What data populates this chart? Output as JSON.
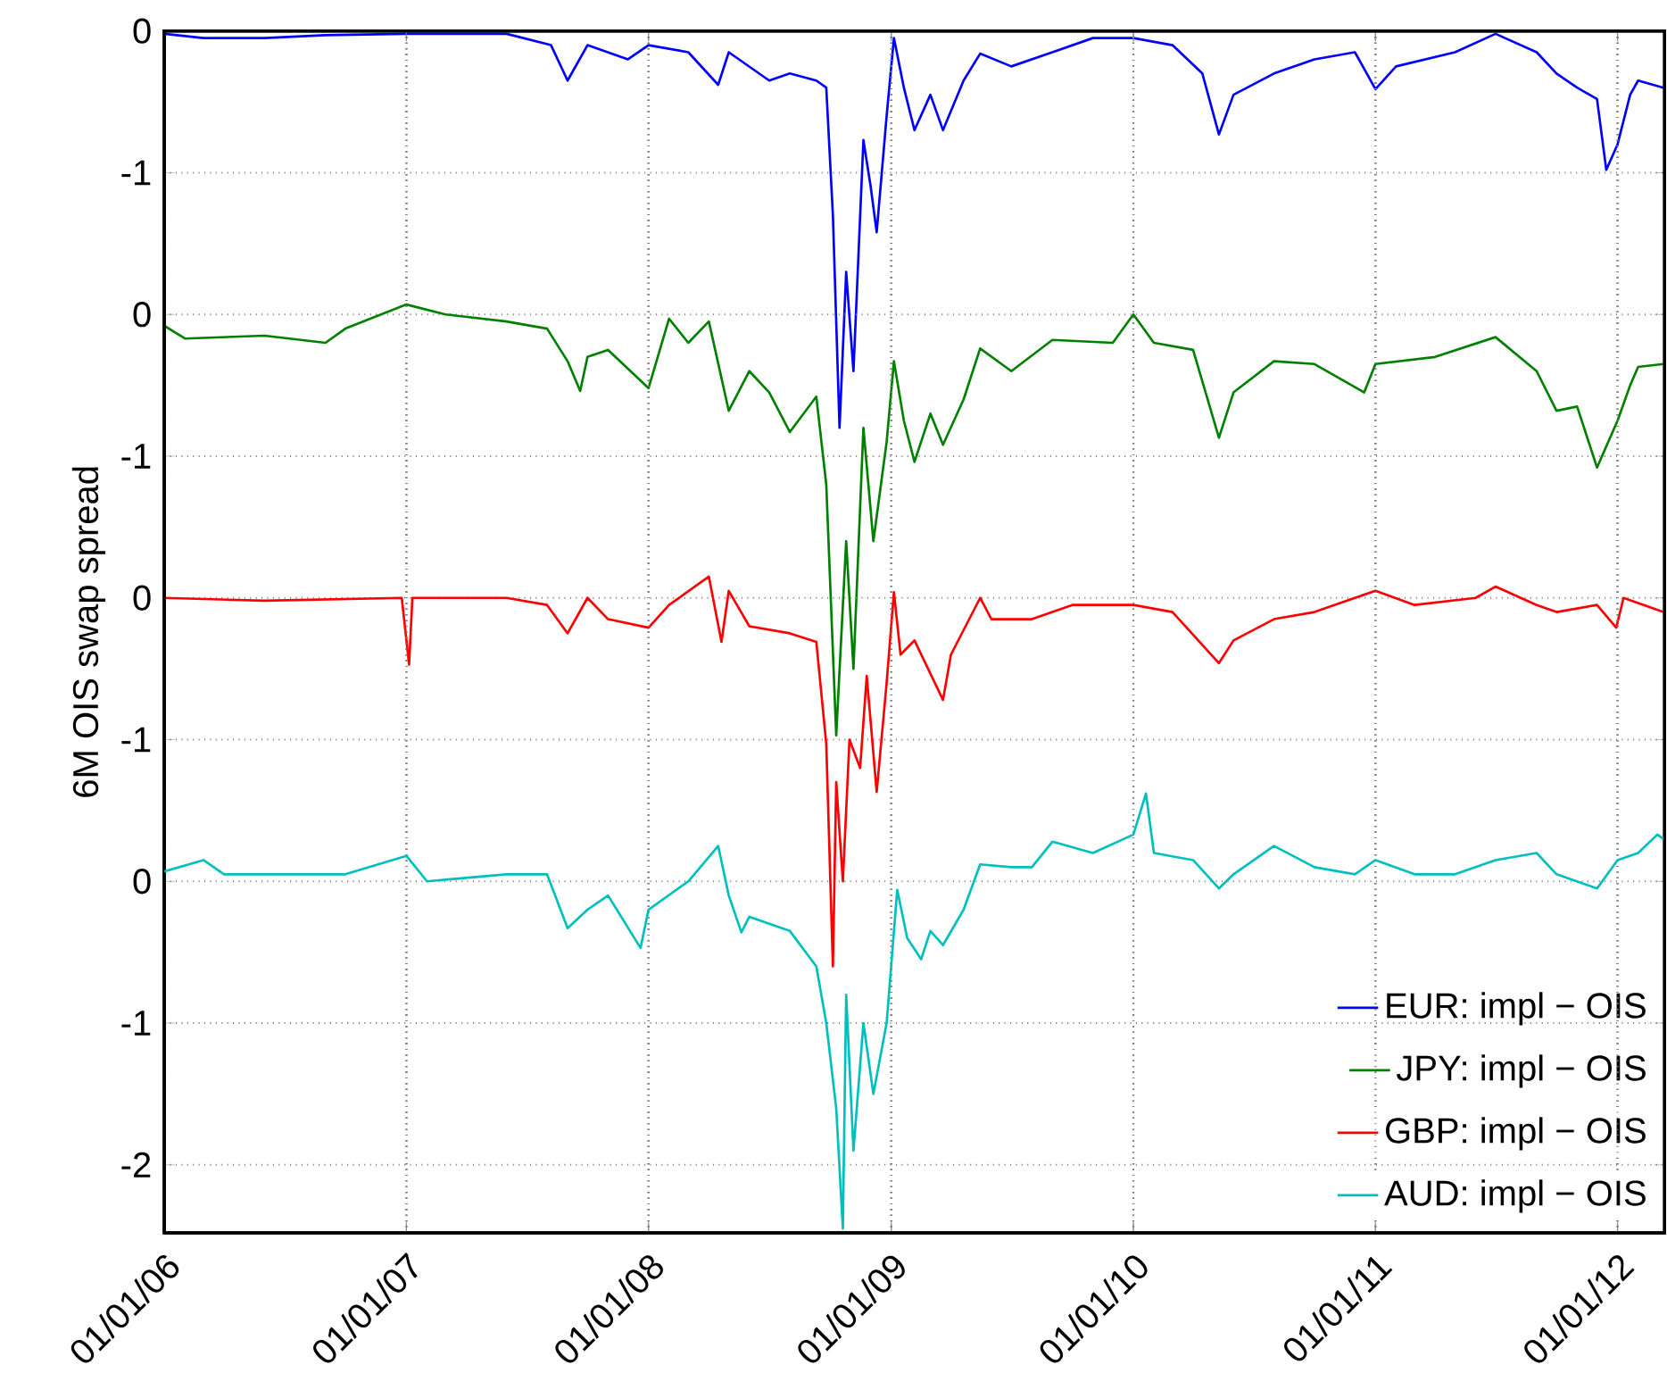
{
  "chart_data": [
    {
      "type": "line",
      "tick_labels": "y",
      "xlim": [
        "2006-01-01",
        "2012-03-12"
      ],
      "xticks": [
        {
          "value": "2006-01-01",
          "label": null
        },
        {
          "value": "2007-01-01",
          "label": null
        },
        {
          "value": "2008-01-01",
          "label": null
        },
        {
          "value": "2009-01-01",
          "label": null
        },
        {
          "value": "2010-01-01",
          "label": null
        },
        {
          "value": "2011-01-01",
          "label": null
        },
        {
          "value": "2012-01-01",
          "label": null
        }
      ],
      "ylim": [
        -8.48,
        0
      ],
      "yticks": [
        -1,
        0
      ],
      "grid": true,
      "legend": "bottom right",
      "marker": "none",
      "line_style": "solid",
      "series": [
        {
          "name": "EUR: impl − OIS",
          "color": "#0000ff",
          "x": [
            "2006-01-01",
            "2006-03-01",
            "2006-06-01",
            "2006-09-01",
            "2007-01-01",
            "2007-03-01",
            "2007-06-01",
            "2007-08-07",
            "2007-09-01",
            "2007-10-01",
            "2007-12-01",
            "2008-01-01",
            "2008-03-01",
            "2008-04-15",
            "2008-05-01",
            "2008-07-01",
            "2008-08-01",
            "2008-09-10",
            "2008-09-25",
            "2008-10-05",
            "2008-10-15",
            "2008-10-25",
            "2008-11-05",
            "2008-11-20",
            "2008-12-01",
            "2008-12-10",
            "2008-12-25",
            "2009-01-05",
            "2009-01-20",
            "2009-02-05",
            "2009-03-01",
            "2009-03-20",
            "2009-04-20",
            "2009-05-15",
            "2009-07-01",
            "2009-09-01",
            "2009-11-01",
            "2010-01-01",
            "2010-03-01",
            "2010-04-15",
            "2010-05-10",
            "2010-06-01",
            "2010-08-01",
            "2010-10-01",
            "2010-12-01",
            "2011-01-01",
            "2011-02-01",
            "2011-05-01",
            "2011-07-01",
            "2011-09-01",
            "2011-10-01",
            "2011-11-01",
            "2011-12-01",
            "2011-12-15",
            "2012-01-01",
            "2012-01-20",
            "2012-02-01",
            "2012-03-10"
          ],
          "values": [
            -0.02,
            -0.05,
            -0.05,
            -0.03,
            -0.02,
            -0.02,
            -0.02,
            -0.1,
            -0.35,
            -0.1,
            -0.2,
            -0.1,
            -0.15,
            -0.38,
            -0.15,
            -0.35,
            -0.3,
            -0.35,
            -0.4,
            -1.3,
            -2.8,
            -1.7,
            -2.4,
            -0.77,
            -1.1,
            -1.42,
            -0.6,
            -0.05,
            -0.4,
            -0.7,
            -0.45,
            -0.7,
            -0.35,
            -0.16,
            -0.25,
            -0.15,
            -0.05,
            -0.05,
            -0.1,
            -0.3,
            -0.73,
            -0.45,
            -0.3,
            -0.2,
            -0.15,
            -0.41,
            -0.25,
            -0.15,
            -0.02,
            -0.15,
            -0.3,
            -0.4,
            -0.48,
            -0.98,
            -0.8,
            -0.45,
            -0.35,
            -0.4
          ]
        }
      ]
    },
    {
      "type": "line",
      "tick_labels": "y",
      "xlim": [
        "2006-01-01",
        "2012-03-12"
      ],
      "xticks": [
        {
          "value": "2006-01-01",
          "label": null
        },
        {
          "value": "2007-01-01",
          "label": null
        },
        {
          "value": "2008-01-01",
          "label": null
        },
        {
          "value": "2009-01-01",
          "label": null
        },
        {
          "value": "2010-01-01",
          "label": null
        },
        {
          "value": "2011-01-01",
          "label": null
        },
        {
          "value": "2012-01-01",
          "label": null
        }
      ],
      "ylim": [
        -6.48,
        2
      ],
      "yticks": [
        -1,
        0
      ],
      "grid": true,
      "legend": "bottom right",
      "marker": "none",
      "line_style": "solid",
      "series": [
        {
          "name": "JPY: impl − OIS",
          "color": "#008000",
          "x": [
            "2006-01-01",
            "2006-02-01",
            "2006-06-01",
            "2006-09-01",
            "2006-10-01",
            "2007-01-01",
            "2007-03-01",
            "2007-06-01",
            "2007-08-01",
            "2007-09-01",
            "2007-09-20",
            "2007-10-01",
            "2007-11-01",
            "2008-01-01",
            "2008-02-01",
            "2008-03-01",
            "2008-04-01",
            "2008-05-01",
            "2008-06-01",
            "2008-07-01",
            "2008-08-01",
            "2008-09-10",
            "2008-09-25",
            "2008-10-10",
            "2008-10-25",
            "2008-11-05",
            "2008-11-20",
            "2008-12-05",
            "2008-12-25",
            "2009-01-05",
            "2009-01-20",
            "2009-02-05",
            "2009-03-01",
            "2009-03-20",
            "2009-04-20",
            "2009-05-15",
            "2009-07-01",
            "2009-09-01",
            "2009-12-01",
            "2010-01-01",
            "2010-02-01",
            "2010-04-01",
            "2010-05-10",
            "2010-06-01",
            "2010-08-01",
            "2010-10-01",
            "2010-12-15",
            "2011-01-01",
            "2011-04-01",
            "2011-07-01",
            "2011-09-01",
            "2011-10-01",
            "2011-11-01",
            "2011-12-01",
            "2012-01-01",
            "2012-01-20",
            "2012-02-01",
            "2012-03-10"
          ],
          "values": [
            -0.08,
            -0.17,
            -0.15,
            -0.2,
            -0.1,
            0.07,
            0.0,
            -0.05,
            -0.1,
            -0.33,
            -0.54,
            -0.3,
            -0.25,
            -0.52,
            -0.03,
            -0.2,
            -0.05,
            -0.68,
            -0.4,
            -0.55,
            -0.83,
            -0.58,
            -1.2,
            -2.97,
            -1.6,
            -2.5,
            -0.8,
            -1.6,
            -0.9,
            -0.33,
            -0.75,
            -1.04,
            -0.7,
            -0.92,
            -0.6,
            -0.24,
            -0.4,
            -0.18,
            -0.2,
            0.0,
            -0.2,
            -0.25,
            -0.87,
            -0.55,
            -0.33,
            -0.35,
            -0.55,
            -0.35,
            -0.3,
            -0.16,
            -0.4,
            -0.68,
            -0.65,
            -1.08,
            -0.75,
            -0.5,
            -0.37,
            -0.35
          ]
        }
      ]
    },
    {
      "type": "line",
      "tick_labels": "y",
      "xlim": [
        "2006-01-01",
        "2012-03-12"
      ],
      "xticks": [
        {
          "value": "2006-01-01",
          "label": null
        },
        {
          "value": "2007-01-01",
          "label": null
        },
        {
          "value": "2008-01-01",
          "label": null
        },
        {
          "value": "2009-01-01",
          "label": null
        },
        {
          "value": "2010-01-01",
          "label": null
        },
        {
          "value": "2011-01-01",
          "label": null
        },
        {
          "value": "2012-01-01",
          "label": null
        }
      ],
      "ylim": [
        -4.48,
        4
      ],
      "yticks": [
        -1,
        0
      ],
      "grid": true,
      "legend": "bottom right",
      "marker": "none",
      "line_style": "solid",
      "series": [
        {
          "name": "GBP: impl − OIS",
          "color": "#ff0000",
          "x": [
            "2006-01-01",
            "2006-06-01",
            "2006-12-25",
            "2007-01-05",
            "2007-01-10",
            "2007-06-01",
            "2007-08-01",
            "2007-09-01",
            "2007-10-01",
            "2007-11-01",
            "2008-01-01",
            "2008-02-01",
            "2008-04-01",
            "2008-04-20",
            "2008-05-01",
            "2008-06-01",
            "2008-08-01",
            "2008-09-10",
            "2008-09-25",
            "2008-10-05",
            "2008-10-10",
            "2008-10-20",
            "2008-10-30",
            "2008-11-15",
            "2008-11-25",
            "2008-12-10",
            "2008-12-25",
            "2009-01-05",
            "2009-01-15",
            "2009-02-05",
            "2009-03-20",
            "2009-04-01",
            "2009-05-15",
            "2009-06-01",
            "2009-08-01",
            "2009-10-01",
            "2010-01-01",
            "2010-03-01",
            "2010-05-10",
            "2010-06-01",
            "2010-08-01",
            "2010-10-01",
            "2010-12-01",
            "2011-01-01",
            "2011-03-01",
            "2011-06-01",
            "2011-07-01",
            "2011-09-01",
            "2011-10-01",
            "2011-12-01",
            "2011-12-30",
            "2012-01-10",
            "2012-03-10"
          ],
          "values": [
            0.0,
            -0.02,
            0.0,
            -0.47,
            0.0,
            0.0,
            -0.05,
            -0.25,
            0.0,
            -0.15,
            -0.21,
            -0.05,
            0.15,
            -0.31,
            0.05,
            -0.2,
            -0.25,
            -0.31,
            -1.03,
            -2.6,
            -1.3,
            -2.0,
            -1.0,
            -1.2,
            -0.55,
            -1.37,
            -0.6,
            0.04,
            -0.4,
            -0.3,
            -0.72,
            -0.4,
            0.0,
            -0.15,
            -0.15,
            -0.05,
            -0.05,
            -0.1,
            -0.46,
            -0.3,
            -0.15,
            -0.1,
            0.0,
            0.05,
            -0.05,
            0.0,
            0.08,
            -0.05,
            -0.1,
            -0.05,
            -0.21,
            0.0,
            -0.1
          ]
        }
      ]
    },
    {
      "type": "line",
      "ylabel": "6M OIS swap spread",
      "xlim": [
        "2006-01-01",
        "2012-03-12"
      ],
      "xticks": [
        {
          "value": "2006-01-01",
          "label": "01/01/06"
        },
        {
          "value": "2007-01-01",
          "label": "01/01/07"
        },
        {
          "value": "2008-01-01",
          "label": "01/01/08"
        },
        {
          "value": "2009-01-01",
          "label": "01/01/09"
        },
        {
          "value": "2010-01-01",
          "label": "01/01/10"
        },
        {
          "value": "2011-01-01",
          "label": "01/01/11"
        },
        {
          "value": "2012-01-01",
          "label": "01/01/12"
        }
      ],
      "ylim": [
        -2.48,
        6
      ],
      "yticks": [
        -2,
        -1,
        0
      ],
      "grid": true,
      "legend": "bottom right",
      "marker": "none",
      "line_style": "solid",
      "series": [
        {
          "name": "AUD: impl − OIS",
          "color": "#00bfbf",
          "x": [
            "2006-01-01",
            "2006-03-01",
            "2006-04-01",
            "2006-10-01",
            "2007-01-01",
            "2007-02-01",
            "2007-06-01",
            "2007-08-01",
            "2007-09-01",
            "2007-10-01",
            "2007-11-01",
            "2007-12-20",
            "2008-01-01",
            "2008-03-01",
            "2008-04-15",
            "2008-05-01",
            "2008-05-20",
            "2008-06-01",
            "2008-08-01",
            "2008-09-10",
            "2008-09-25",
            "2008-10-10",
            "2008-10-20",
            "2008-10-25",
            "2008-11-05",
            "2008-11-20",
            "2008-12-05",
            "2008-12-25",
            "2009-01-10",
            "2009-01-25",
            "2009-02-15",
            "2009-03-01",
            "2009-03-20",
            "2009-04-20",
            "2009-05-15",
            "2009-07-01",
            "2009-08-01",
            "2009-09-01",
            "2009-11-01",
            "2010-01-01",
            "2010-01-20",
            "2010-02-01",
            "2010-04-01",
            "2010-05-10",
            "2010-06-01",
            "2010-08-01",
            "2010-10-01",
            "2010-12-01",
            "2011-01-01",
            "2011-03-01",
            "2011-05-01",
            "2011-07-01",
            "2011-09-01",
            "2011-10-01",
            "2011-12-01",
            "2012-01-01",
            "2012-02-01",
            "2012-03-01",
            "2012-03-10"
          ],
          "values": [
            0.07,
            0.15,
            0.05,
            0.05,
            0.18,
            0.0,
            0.05,
            0.05,
            -0.33,
            -0.2,
            -0.1,
            -0.47,
            -0.2,
            0.0,
            0.25,
            -0.1,
            -0.36,
            -0.25,
            -0.35,
            -0.6,
            -1.0,
            -1.6,
            -2.45,
            -0.8,
            -1.9,
            -1.0,
            -1.5,
            -1.0,
            -0.06,
            -0.4,
            -0.55,
            -0.35,
            -0.45,
            -0.2,
            0.12,
            0.1,
            0.1,
            0.28,
            0.2,
            0.33,
            0.62,
            0.2,
            0.15,
            -0.05,
            0.05,
            0.25,
            0.1,
            0.05,
            0.15,
            0.05,
            0.05,
            0.15,
            0.2,
            0.05,
            -0.05,
            0.15,
            0.2,
            0.33,
            0.3
          ]
        }
      ]
    }
  ]
}
